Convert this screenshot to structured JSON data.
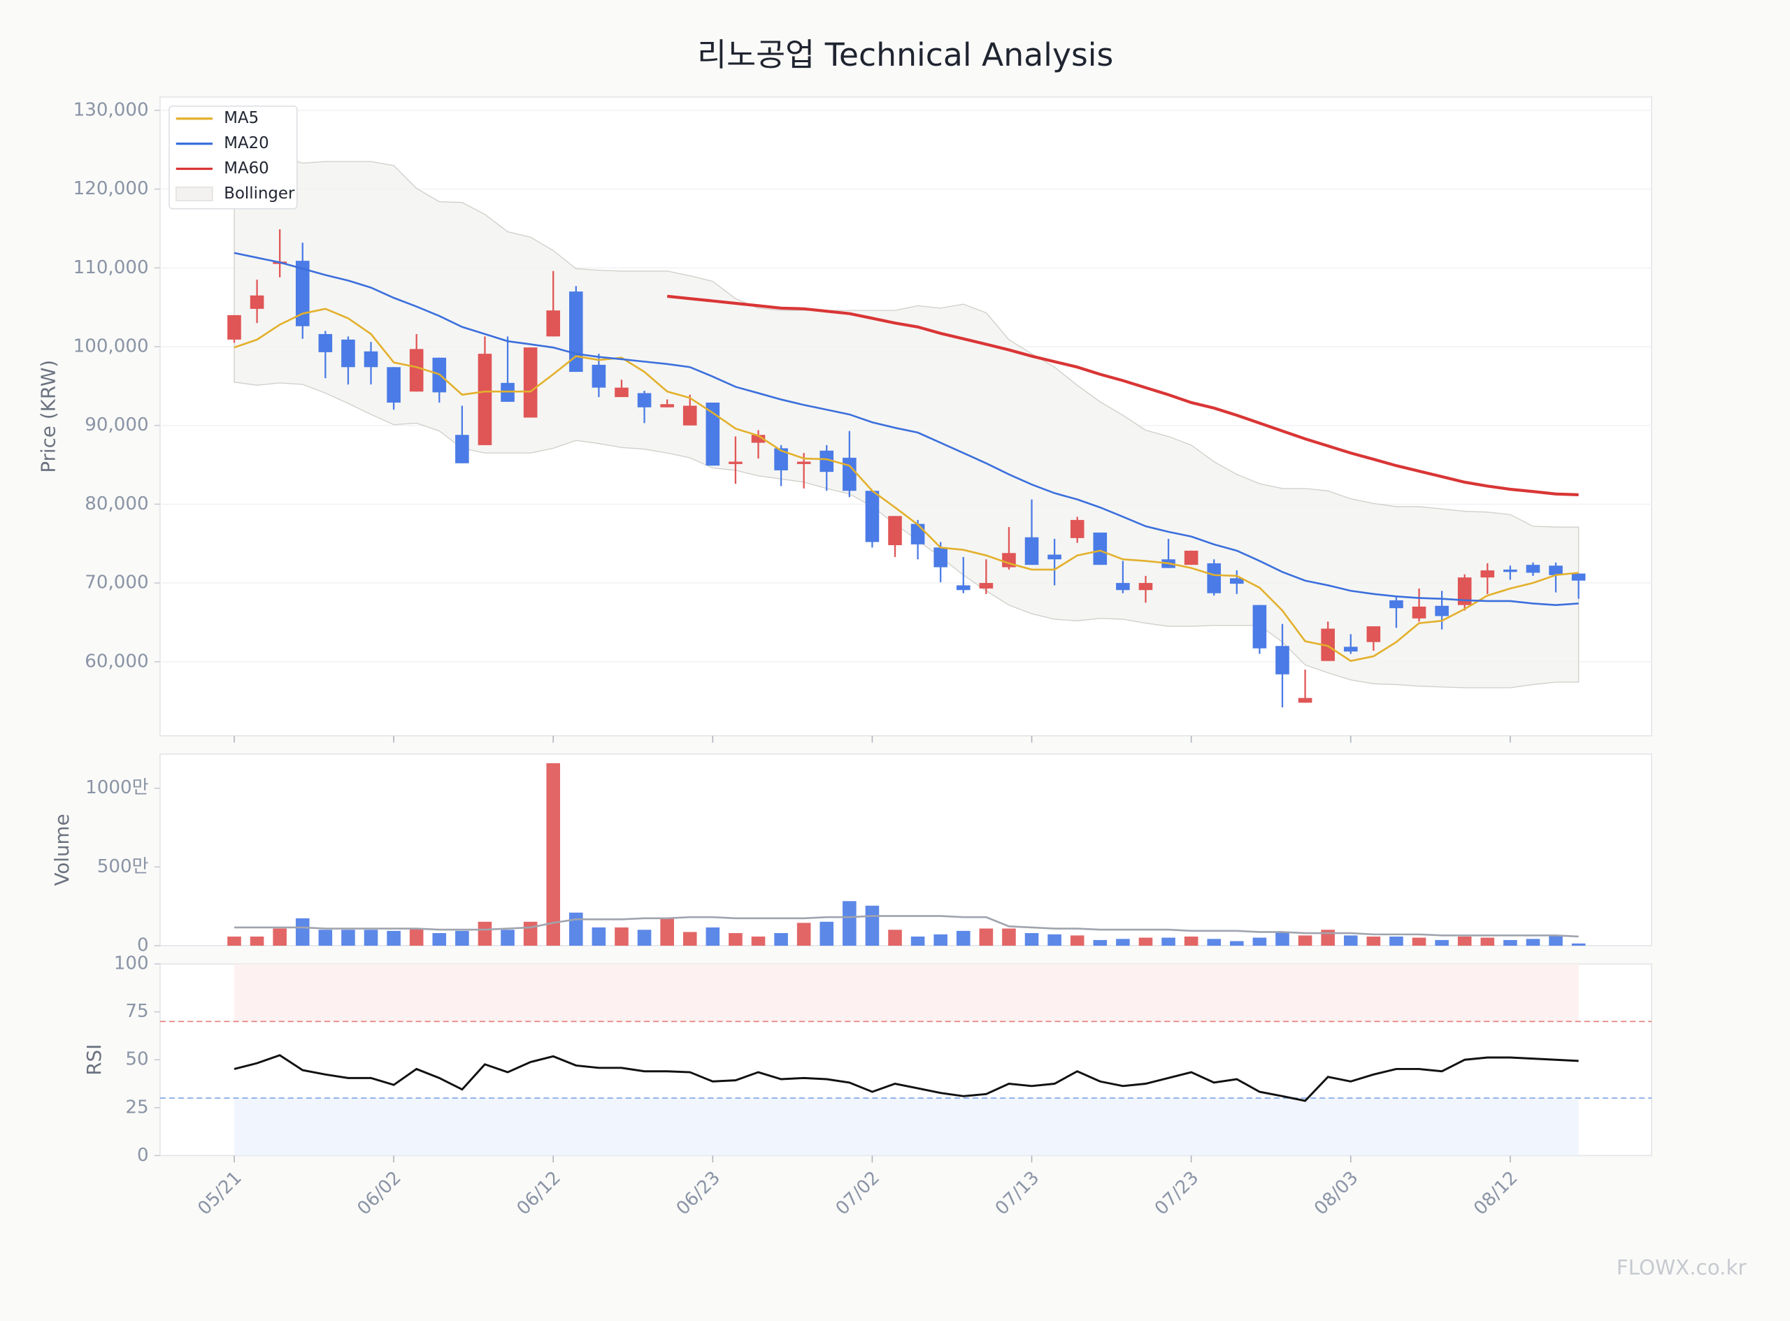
{
  "chart_data": {
    "type": "candlestick",
    "title": "리노공업 Technical Analysis",
    "watermark": "FLOWX.co.kr",
    "legend": "upper left",
    "grid": true,
    "ylabel": "Price (KRW)",
    "ylim": [
      50600,
      131700
    ],
    "yticks": [
      {
        "value": 60000,
        "label": "60,000"
      },
      {
        "value": 70000,
        "label": "70,000"
      },
      {
        "value": 80000,
        "label": "80,000"
      },
      {
        "value": 90000,
        "label": "90,000"
      },
      {
        "value": 100000,
        "label": "100,000"
      },
      {
        "value": 110000,
        "label": "110,000"
      },
      {
        "value": 120000,
        "label": "120,000"
      },
      {
        "value": 130000,
        "label": "130,000"
      }
    ],
    "up_color": "#e05555",
    "down_color": "#4a7be6",
    "categories": [
      "05/21",
      null,
      null,
      null,
      null,
      null,
      null,
      "06/02",
      null,
      null,
      null,
      null,
      null,
      null,
      "06/12",
      null,
      null,
      null,
      null,
      null,
      null,
      "06/23",
      null,
      null,
      null,
      null,
      null,
      null,
      "07/02",
      null,
      null,
      null,
      null,
      null,
      null,
      "07/13",
      null,
      null,
      null,
      null,
      null,
      null,
      "07/23",
      null,
      null,
      null,
      null,
      null,
      null,
      "08/03",
      null,
      null,
      null,
      null,
      null,
      null,
      "08/12",
      null,
      null,
      null
    ],
    "open": [
      100900,
      104800,
      110500,
      110900,
      101600,
      100900,
      99400,
      97400,
      94300,
      98600,
      88800,
      87500,
      95400,
      91000,
      101300,
      107000,
      97700,
      93600,
      94100,
      92300,
      90000,
      92900,
      85100,
      87800,
      87100,
      85100,
      86800,
      85900,
      81700,
      74800,
      77500,
      74500,
      69700,
      69300,
      72000,
      75800,
      73600,
      75700,
      76400,
      70000,
      69100,
      73000,
      72300,
      72500,
      70600,
      67200,
      62000,
      54800,
      60100,
      61900,
      62500,
      67800,
      65500,
      67100,
      67200,
      70700,
      71700,
      72300,
      72200,
      71200
    ],
    "high": [
      104000,
      108500,
      114900,
      113200,
      102000,
      101300,
      100600,
      97400,
      101600,
      98600,
      92500,
      101300,
      101300,
      99900,
      109600,
      107700,
      99100,
      95800,
      94400,
      93300,
      93900,
      92900,
      88600,
      89400,
      87500,
      86500,
      87500,
      89300,
      81700,
      78500,
      78000,
      75200,
      73300,
      73000,
      77100,
      80600,
      75600,
      78400,
      76400,
      72800,
      70900,
      75600,
      74100,
      73000,
      71600,
      67200,
      64800,
      59000,
      65100,
      63500,
      64500,
      68400,
      69300,
      69000,
      71100,
      72500,
      72200,
      72600,
      72600,
      71200
    ],
    "low": [
      100500,
      103000,
      108800,
      101000,
      96000,
      95200,
      95200,
      92000,
      94300,
      92900,
      85200,
      87500,
      93000,
      91000,
      101300,
      96800,
      93600,
      93600,
      90300,
      92300,
      90000,
      84900,
      82600,
      85800,
      82300,
      82000,
      81700,
      80900,
      74500,
      73300,
      73000,
      70100,
      68700,
      68600,
      71700,
      72300,
      69700,
      75100,
      72300,
      68700,
      67500,
      71900,
      72300,
      68400,
      68600,
      61000,
      54200,
      54800,
      60100,
      61000,
      61400,
      64300,
      65100,
      64100,
      66500,
      68600,
      70400,
      70900,
      68800,
      68000
    ],
    "close": [
      104000,
      106500,
      110800,
      102600,
      99300,
      97400,
      97400,
      92900,
      99700,
      94200,
      85200,
      99100,
      93000,
      99900,
      104600,
      96800,
      94800,
      94800,
      92300,
      92700,
      92500,
      84900,
      85400,
      88800,
      84300,
      85400,
      84100,
      81700,
      75200,
      78500,
      74900,
      72000,
      69100,
      70000,
      73800,
      72300,
      73000,
      78000,
      72300,
      69100,
      70000,
      71900,
      74100,
      68700,
      69900,
      61700,
      58400,
      55400,
      64200,
      61300,
      64500,
      66800,
      67000,
      65800,
      70700,
      71600,
      71400,
      71300,
      71000,
      70300
    ],
    "series": [
      {
        "name": "MA5",
        "color": "#e3b02c",
        "values": [
          99900,
          100900,
          102800,
          104200,
          104800,
          103600,
          101600,
          98000,
          97400,
          96500,
          93900,
          94300,
          94300,
          94300,
          96500,
          98800,
          98300,
          98600,
          96800,
          94300,
          93500,
          91600,
          89600,
          88700,
          86800,
          85800,
          85700,
          84900,
          81700,
          79600,
          77400,
          74500,
          74200,
          73500,
          72500,
          71700,
          71700,
          73500,
          74100,
          73000,
          72800,
          72500,
          71900,
          71000,
          70900,
          69400,
          66500,
          62600,
          62000,
          60100,
          60700,
          62500,
          64900,
          65200,
          66700,
          68400,
          69300,
          70000,
          71000,
          71300
        ]
      },
      {
        "name": "MA20",
        "color": "#3b6fdc",
        "values": [
          111900,
          111300,
          110700,
          109900,
          109100,
          108400,
          107500,
          106200,
          105100,
          103900,
          102500,
          101600,
          100700,
          100300,
          99900,
          99100,
          98700,
          98400,
          98100,
          97800,
          97400,
          96200,
          94900,
          94100,
          93300,
          92600,
          92000,
          91400,
          90400,
          89700,
          89100,
          87800,
          86500,
          85200,
          83800,
          82500,
          81400,
          80600,
          79600,
          78400,
          77200,
          76500,
          75900,
          74900,
          74100,
          72800,
          71400,
          70300,
          69700,
          69000,
          68600,
          68300,
          68100,
          68000,
          67800,
          67700,
          67700,
          67400,
          67200,
          67400
        ]
      },
      {
        "name": "MA60",
        "color": "#d93535",
        "values": [
          null,
          null,
          null,
          null,
          null,
          null,
          null,
          null,
          null,
          null,
          null,
          null,
          null,
          null,
          null,
          null,
          null,
          null,
          null,
          106400,
          106100,
          105800,
          105500,
          105200,
          104900,
          104800,
          104500,
          104200,
          103600,
          103000,
          102500,
          101700,
          101000,
          100300,
          99600,
          98800,
          98100,
          97400,
          96500,
          95700,
          94800,
          93900,
          92900,
          92200,
          91300,
          90300,
          89300,
          88300,
          87400,
          86500,
          85700,
          84900,
          84200,
          83500,
          82800,
          82300,
          81900,
          81600,
          81300,
          81200
        ]
      }
    ],
    "bollinger": {
      "name": "Bollinger",
      "color": "#b4b0aa",
      "upper": [
        125800,
        125100,
        124200,
        123300,
        123500,
        123500,
        123500,
        123000,
        120100,
        118400,
        118300,
        116800,
        114600,
        113900,
        112200,
        109900,
        109700,
        109600,
        109600,
        109600,
        109000,
        108300,
        106100,
        104900,
        104600,
        104600,
        104600,
        104600,
        104600,
        104600,
        105200,
        104900,
        105400,
        104300,
        100900,
        99100,
        97400,
        95100,
        93000,
        91300,
        89400,
        88600,
        87500,
        85400,
        83800,
        82600,
        82000,
        82000,
        81700,
        80700,
        80100,
        79700,
        79700,
        79400,
        79100,
        79000,
        78700,
        77200,
        77100,
        77100
      ],
      "lower": [
        95500,
        95100,
        95400,
        95200,
        94100,
        92800,
        91400,
        90100,
        90300,
        89300,
        87100,
        86500,
        86500,
        86500,
        87100,
        88100,
        87700,
        87200,
        87000,
        86500,
        85900,
        84600,
        84300,
        83600,
        83200,
        82800,
        82000,
        81300,
        79700,
        77500,
        75400,
        73300,
        71000,
        69000,
        67200,
        66100,
        65400,
        65200,
        65500,
        65400,
        64900,
        64500,
        64500,
        64600,
        64600,
        64600,
        62500,
        59600,
        58600,
        57700,
        57200,
        57100,
        56900,
        56800,
        56700,
        56700,
        56700,
        57100,
        57400,
        57400
      ]
    },
    "volume": {
      "ylabel": "Volume",
      "ylim": [
        0,
        12170000
      ],
      "yticks": [
        0,
        {
          "value": 5000000,
          "label": "500만"
        },
        {
          "value": 10000000,
          "label": "1000만"
        }
      ],
      "values": [
        580000,
        580000,
        1090000,
        1740000,
        1010000,
        1010000,
        1010000,
        940000,
        1090000,
        800000,
        940000,
        1520000,
        1010000,
        1520000,
        11590000,
        2100000,
        1160000,
        1160000,
        1010000,
        1740000,
        870000,
        1160000,
        800000,
        580000,
        800000,
        1450000,
        1520000,
        2830000,
        2540000,
        1010000,
        580000,
        720000,
        940000,
        1090000,
        1090000,
        800000,
        720000,
        650000,
        360000,
        430000,
        510000,
        510000,
        580000,
        430000,
        290000,
        510000,
        870000,
        650000,
        1010000,
        650000,
        580000,
        580000,
        510000,
        360000,
        580000,
        510000,
        360000,
        430000,
        650000,
        140000
      ],
      "ma": {
        "color": "#a0a4ae",
        "values": [
          1160000,
          1160000,
          1160000,
          1160000,
          1090000,
          1090000,
          1090000,
          1090000,
          1090000,
          1020000,
          1020000,
          1020000,
          1090000,
          1160000,
          1450000,
          1670000,
          1670000,
          1670000,
          1740000,
          1740000,
          1810000,
          1810000,
          1740000,
          1740000,
          1740000,
          1740000,
          1810000,
          1810000,
          1880000,
          1880000,
          1880000,
          1880000,
          1810000,
          1810000,
          1230000,
          1160000,
          1090000,
          1090000,
          1020000,
          1020000,
          1020000,
          1020000,
          940000,
          940000,
          940000,
          870000,
          870000,
          800000,
          800000,
          800000,
          720000,
          720000,
          720000,
          650000,
          650000,
          650000,
          650000,
          650000,
          650000,
          580000
        ]
      }
    },
    "rsi": {
      "ylabel": "RSI",
      "ylim": [
        0,
        100
      ],
      "yticks": [
        0,
        25,
        50,
        75,
        100
      ],
      "color": "#111111",
      "overbought": 70,
      "oversold": 30,
      "values": [
        45.2,
        48.2,
        52.4,
        44.6,
        42.3,
        40.5,
        40.5,
        36.9,
        45.2,
        40.5,
        34.5,
        47.6,
        43.5,
        48.8,
        51.8,
        47,
        45.8,
        45.8,
        44,
        44,
        43.5,
        38.7,
        39.3,
        43.5,
        39.9,
        40.5,
        39.9,
        38.1,
        33.3,
        37.5,
        35.1,
        32.7,
        31,
        32.1,
        37.5,
        36.3,
        37.5,
        44,
        38.7,
        36.3,
        37.5,
        40.5,
        43.5,
        38.1,
        39.9,
        33.3,
        31,
        28.6,
        41.1,
        38.7,
        42.3,
        45.2,
        45.2,
        44,
        50,
        51.2,
        51.2,
        50.6,
        50,
        49.4
      ]
    }
  }
}
